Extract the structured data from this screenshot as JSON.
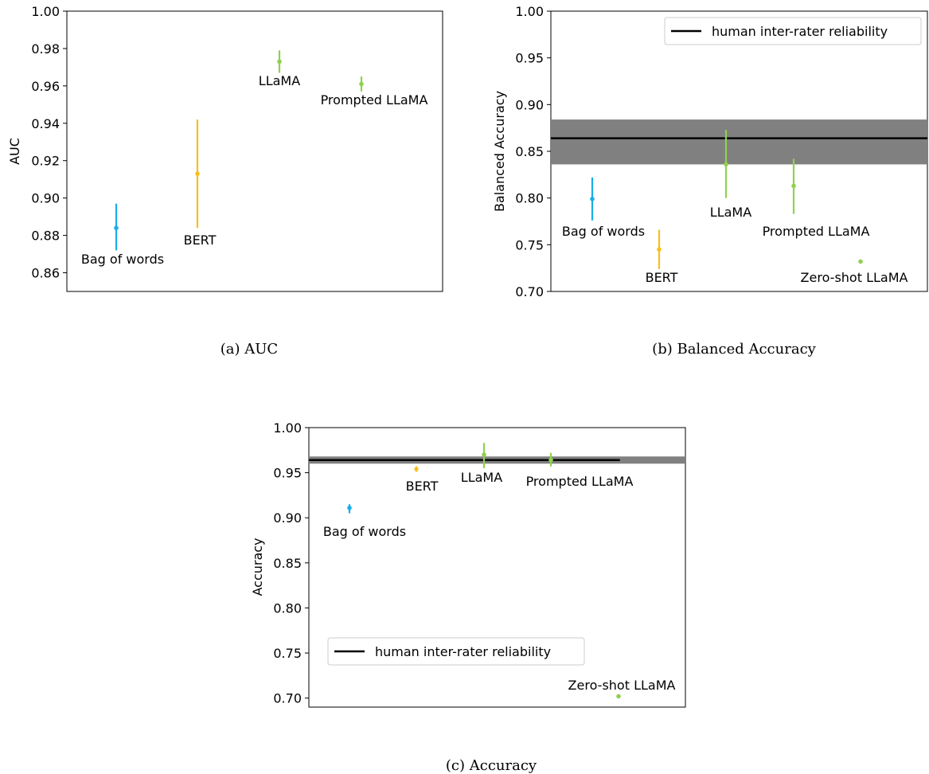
{
  "colors": {
    "bag_of_words": "#1aaee8",
    "bert": "#f7bf1c",
    "llama": "#8fd14f",
    "human_line": "#000000",
    "human_band": "#808080"
  },
  "chart_data": [
    {
      "id": "a",
      "type": "scatter",
      "caption": "(a) AUC",
      "ylabel": "AUC",
      "ylim": [
        0.85,
        1.0
      ],
      "yticks": [
        "0.86",
        "0.88",
        "0.90",
        "0.92",
        "0.94",
        "0.96",
        "0.98",
        "1.00"
      ],
      "grid": false,
      "legend": null,
      "series": [
        {
          "label": "Bag of words",
          "x": 1,
          "y": 0.884,
          "err_low": 0.872,
          "err_high": 0.897,
          "color_key": "bag_of_words",
          "marker": "circle"
        },
        {
          "label": "BERT",
          "x": 2,
          "y": 0.913,
          "err_low": 0.884,
          "err_high": 0.942,
          "color_key": "bert",
          "marker": "circle"
        },
        {
          "label": "LLaMA",
          "x": 3,
          "y": 0.973,
          "err_low": 0.967,
          "err_high": 0.979,
          "color_key": "llama",
          "marker": "circle"
        },
        {
          "label": "Prompted LLaMA",
          "x": 4,
          "y": 0.961,
          "err_low": 0.957,
          "err_high": 0.965,
          "color_key": "llama",
          "marker": "circle"
        }
      ]
    },
    {
      "id": "b",
      "type": "scatter",
      "caption": "(b) Balanced Accuracy",
      "ylabel": "Balanced Accuracy",
      "ylim": [
        0.7,
        1.0
      ],
      "yticks": [
        "0.70",
        "0.75",
        "0.80",
        "0.85",
        "0.90",
        "0.95",
        "1.00"
      ],
      "grid": false,
      "legend": {
        "placement": "top-right",
        "entries": [
          "human inter-rater reliability"
        ]
      },
      "reference": {
        "label": "human inter-rater reliability",
        "y": 0.864,
        "band_low": 0.836,
        "band_high": 0.884
      },
      "series": [
        {
          "label": "Bag of words",
          "x": 1,
          "y": 0.799,
          "err_low": 0.776,
          "err_high": 0.822,
          "color_key": "bag_of_words",
          "marker": "circle"
        },
        {
          "label": "BERT",
          "x": 2,
          "y": 0.745,
          "err_low": 0.724,
          "err_high": 0.766,
          "color_key": "bert",
          "marker": "circle"
        },
        {
          "label": "LLaMA",
          "x": 3,
          "y": 0.836,
          "err_low": 0.8,
          "err_high": 0.873,
          "color_key": "llama",
          "marker": "circle"
        },
        {
          "label": "Prompted LLaMA",
          "x": 4,
          "y": 0.813,
          "err_low": 0.783,
          "err_high": 0.842,
          "color_key": "llama",
          "marker": "circle"
        },
        {
          "label": "Zero-shot LLaMA",
          "x": 5,
          "y": 0.732,
          "err_low": 0.732,
          "err_high": 0.732,
          "color_key": "llama",
          "marker": "circle"
        }
      ]
    },
    {
      "id": "c",
      "type": "scatter",
      "caption": "(c) Accuracy",
      "ylabel": "Accuracy",
      "ylim": [
        0.69,
        1.0
      ],
      "yticks": [
        "0.70",
        "0.75",
        "0.80",
        "0.85",
        "0.90",
        "0.95",
        "1.00"
      ],
      "grid": false,
      "legend": {
        "placement": "lower-left",
        "entries": [
          "human inter-rater reliability"
        ]
      },
      "reference": {
        "label": "human inter-rater reliability",
        "y": 0.964,
        "band_low": 0.96,
        "band_high": 0.968
      },
      "series": [
        {
          "label": "Bag of words",
          "x": 1,
          "y": 0.911,
          "err_low": 0.905,
          "err_high": 0.915,
          "color_key": "bag_of_words",
          "marker": "circle"
        },
        {
          "label": "BERT",
          "x": 2,
          "y": 0.954,
          "err_low": 0.951,
          "err_high": 0.957,
          "color_key": "bert",
          "marker": "diamond"
        },
        {
          "label": "LLaMA",
          "x": 3,
          "y": 0.97,
          "err_low": 0.955,
          "err_high": 0.983,
          "color_key": "llama",
          "marker": "circle"
        },
        {
          "label": "Prompted LLaMA",
          "x": 4,
          "y": 0.964,
          "err_low": 0.957,
          "err_high": 0.972,
          "color_key": "llama",
          "marker": "circle"
        },
        {
          "label": "Zero-shot LLaMA",
          "x": 5,
          "y": 0.702,
          "err_low": 0.702,
          "err_high": 0.702,
          "color_key": "llama",
          "marker": "circle"
        }
      ]
    }
  ]
}
